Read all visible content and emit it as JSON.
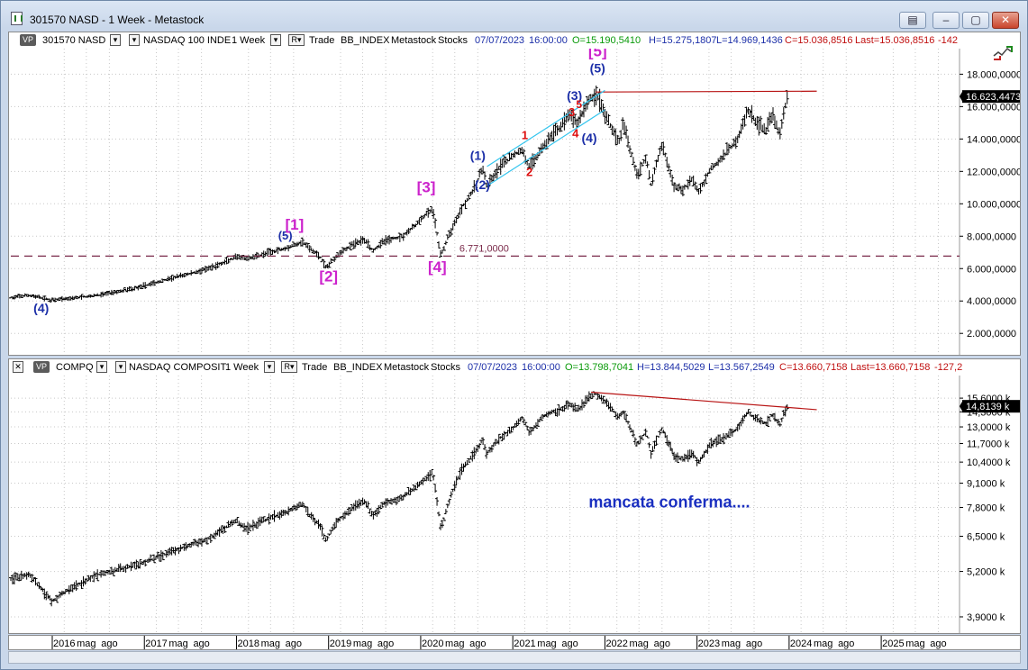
{
  "window": {
    "title": "301570 NASD - 1 Week - Metastock",
    "buttons": [
      "▤",
      "–",
      "▢",
      "✕"
    ]
  },
  "colors": {
    "purple": "#cc22cc",
    "navy": "#1c2fa8",
    "red": "#dd1010",
    "channel": "#33c5ee",
    "trend": "#b81414",
    "dashed": "#7a2a4a"
  },
  "top_header": {
    "vp": "VP",
    "symbol": "301570 NASD",
    "name": "NASDAQ 100 INDE",
    "period": "1 Week",
    "rline": "R",
    "trade": "Trade",
    "source": "BB_INDEX",
    "vendor": "Metastock",
    "type": "Stocks",
    "date": "07/07/2023",
    "time": "16:00:00",
    "open": "O=15.190,5410",
    "high": "H=15.275,1807",
    "low": "L=14.969,1436",
    "close": "C=15.036,8516",
    "last": "Last=15.036,8516",
    "change": "-142"
  },
  "bottom_header": {
    "vp": "VP",
    "symbol": "COMPQ",
    "name": "NASDAQ COMPOSIT",
    "period": "1 Week",
    "rline": "R",
    "trade": "Trade",
    "source": "BB_INDEX",
    "vendor": "Metastock",
    "type": "Stocks",
    "date": "07/07/2023",
    "time": "16:00:00",
    "open": "O=13.798,7041",
    "high": "H=13.844,5029",
    "low": "L=13.567,2549",
    "close": "C=13.660,7158",
    "last": "Last=13.660,7158",
    "change": "-127,2"
  },
  "chart_data": [
    {
      "type": "bar",
      "series_label": "301570 NASD",
      "x_range": [
        2015.55,
        2025.85
      ],
      "ylim": [
        900,
        19300
      ],
      "y_ticks": [
        {
          "value": 2000,
          "label": "2.000,0000"
        },
        {
          "value": 4000,
          "label": "4.000,0000"
        },
        {
          "value": 6000,
          "label": "6.000,0000"
        },
        {
          "value": 8000,
          "label": "8.000,0000"
        },
        {
          "value": 10000,
          "label": "10.000,0000"
        },
        {
          "value": 12000,
          "label": "12.000,0000"
        },
        {
          "value": 14000,
          "label": "14.000,0000"
        },
        {
          "value": 16000,
          "label": "16.000,0000"
        },
        {
          "value": 18000,
          "label": "18.000,0000"
        }
      ],
      "last_value": 16623.4473,
      "last_label": "16.623,4473",
      "price_path": [
        [
          2015.55,
          4200
        ],
        [
          2015.75,
          4350
        ],
        [
          2016.0,
          4050
        ],
        [
          2016.15,
          4150
        ],
        [
          2016.5,
          4350
        ],
        [
          2016.9,
          4800
        ],
        [
          2017.3,
          5400
        ],
        [
          2017.7,
          6000
        ],
        [
          2018.0,
          6700
        ],
        [
          2018.1,
          6600
        ],
        [
          2018.3,
          6900
        ],
        [
          2018.55,
          7300
        ],
        [
          2018.72,
          7650
        ],
        [
          2018.8,
          7200
        ],
        [
          2018.9,
          6800
        ],
        [
          2018.97,
          6050
        ],
        [
          2019.1,
          6900
        ],
        [
          2019.3,
          7600
        ],
        [
          2019.4,
          7800
        ],
        [
          2019.48,
          7100
        ],
        [
          2019.6,
          7700
        ],
        [
          2019.8,
          8000
        ],
        [
          2019.95,
          8700
        ],
        [
          2020.05,
          9300
        ],
        [
          2020.13,
          9650
        ],
        [
          2020.22,
          6771
        ],
        [
          2020.3,
          8000
        ],
        [
          2020.45,
          9800
        ],
        [
          2020.6,
          11100
        ],
        [
          2020.67,
          12300
        ],
        [
          2020.72,
          11000
        ],
        [
          2020.85,
          12200
        ],
        [
          2021.0,
          13000
        ],
        [
          2021.1,
          13300
        ],
        [
          2021.18,
          12300
        ],
        [
          2021.35,
          13700
        ],
        [
          2021.5,
          14700
        ],
        [
          2021.62,
          15500
        ],
        [
          2021.7,
          15000
        ],
        [
          2021.82,
          16400
        ],
        [
          2021.92,
          16750
        ],
        [
          2022.0,
          15500
        ],
        [
          2022.15,
          13800
        ],
        [
          2022.2,
          14900
        ],
        [
          2022.35,
          11800
        ],
        [
          2022.45,
          12900
        ],
        [
          2022.5,
          11200
        ],
        [
          2022.62,
          13700
        ],
        [
          2022.75,
          11100
        ],
        [
          2022.85,
          10900
        ],
        [
          2022.95,
          11500
        ],
        [
          2023.02,
          10700
        ],
        [
          2023.15,
          12200
        ],
        [
          2023.3,
          13000
        ],
        [
          2023.45,
          14100
        ],
        [
          2023.55,
          15800
        ],
        [
          2023.62,
          15200
        ],
        [
          2023.75,
          14500
        ],
        [
          2023.82,
          15600
        ],
        [
          2023.9,
          14200
        ],
        [
          2023.95,
          15900
        ],
        [
          2023.99,
          16650
        ]
      ],
      "dashed_level": 6771,
      "dashed_label": "6.771,0000",
      "resistance_line": {
        "from": [
          2021.9,
          16900
        ],
        "to": [
          2024.3,
          16950
        ]
      },
      "channel": {
        "lower": {
          "from": [
            2020.72,
            11100
          ],
          "to": [
            2022.0,
            15800
          ]
        },
        "upper": {
          "from": [
            2020.72,
            12300
          ],
          "to": [
            2022.0,
            17000
          ]
        }
      },
      "annotations": [
        {
          "text": "(4)",
          "x": 2015.88,
          "y": 3300,
          "color": "navy",
          "size": 14
        },
        {
          "text": "(5)",
          "x": 2018.53,
          "y": 7800,
          "color": "navy",
          "size": 13
        },
        {
          "text": "[1]",
          "x": 2018.63,
          "y": 8400,
          "color": "purple",
          "size": 17
        },
        {
          "text": "[2]",
          "x": 2019.0,
          "y": 5200,
          "color": "purple",
          "size": 17
        },
        {
          "text": "[3]",
          "x": 2020.06,
          "y": 10700,
          "color": "purple",
          "size": 17
        },
        {
          "text": "[4]",
          "x": 2020.18,
          "y": 5800,
          "color": "purple",
          "size": 17
        },
        {
          "text": "(1)",
          "x": 2020.62,
          "y": 12700,
          "color": "navy",
          "size": 14
        },
        {
          "text": "(2)",
          "x": 2020.67,
          "y": 10900,
          "color": "navy",
          "size": 14
        },
        {
          "text": "1",
          "x": 2021.13,
          "y": 14000,
          "color": "red",
          "size": 13
        },
        {
          "text": "2",
          "x": 2021.18,
          "y": 11700,
          "color": "red",
          "size": 13
        },
        {
          "text": "(3)",
          "x": 2021.67,
          "y": 16400,
          "color": "navy",
          "size": 14
        },
        {
          "text": "3",
          "x": 2021.64,
          "y": 15400,
          "color": "red",
          "size": 13
        },
        {
          "text": "5",
          "x": 2021.72,
          "y": 15900,
          "color": "red",
          "size": 12
        },
        {
          "text": "4",
          "x": 2021.68,
          "y": 14100,
          "color": "red",
          "size": 13
        },
        {
          "text": "(4)",
          "x": 2021.83,
          "y": 13800,
          "color": "navy",
          "size": 14
        },
        {
          "text": "(5)",
          "x": 2021.92,
          "y": 18100,
          "color": "navy",
          "size": 14
        },
        {
          "text": "[5]",
          "x": 2021.92,
          "y": 19100,
          "color": "purple",
          "size": 17
        }
      ]
    },
    {
      "type": "bar",
      "series_label": "COMPQ",
      "x_range": [
        2015.55,
        2025.85
      ],
      "y_ticks": [
        {
          "value": 3900,
          "label": "3,9000 k"
        },
        {
          "value": 5200,
          "label": "5,2000 k"
        },
        {
          "value": 6500,
          "label": "6,5000 k"
        },
        {
          "value": 7800,
          "label": "7,8000 k"
        },
        {
          "value": 9100,
          "label": "9,1000 k"
        },
        {
          "value": 10400,
          "label": "10,4000 k"
        },
        {
          "value": 11700,
          "label": "11,7000 k"
        },
        {
          "value": 13000,
          "label": "13,0000 k"
        },
        {
          "value": 14300,
          "label": "14,3000 k"
        },
        {
          "value": 15600,
          "label": "15,6000 k"
        }
      ],
      "last_value": 14813.9,
      "last_label": "14,8139 k",
      "price_path": [
        [
          2015.55,
          4950
        ],
        [
          2015.75,
          5100
        ],
        [
          2015.85,
          4750
        ],
        [
          2016.0,
          4300
        ],
        [
          2016.15,
          4600
        ],
        [
          2016.5,
          5100
        ],
        [
          2016.9,
          5400
        ],
        [
          2017.3,
          5900
        ],
        [
          2017.7,
          6400
        ],
        [
          2018.0,
          7200
        ],
        [
          2018.1,
          6800
        ],
        [
          2018.3,
          7200
        ],
        [
          2018.55,
          7600
        ],
        [
          2018.72,
          8000
        ],
        [
          2018.8,
          7400
        ],
        [
          2018.9,
          7000
        ],
        [
          2018.97,
          6300
        ],
        [
          2019.1,
          7200
        ],
        [
          2019.3,
          7900
        ],
        [
          2019.4,
          8100
        ],
        [
          2019.48,
          7400
        ],
        [
          2019.6,
          8000
        ],
        [
          2019.8,
          8300
        ],
        [
          2019.95,
          8900
        ],
        [
          2020.05,
          9300
        ],
        [
          2020.13,
          9700
        ],
        [
          2020.22,
          6700
        ],
        [
          2020.3,
          8000
        ],
        [
          2020.45,
          10000
        ],
        [
          2020.6,
          11100
        ],
        [
          2020.67,
          12000
        ],
        [
          2020.72,
          11000
        ],
        [
          2020.85,
          12000
        ],
        [
          2021.0,
          12900
        ],
        [
          2021.1,
          13800
        ],
        [
          2021.18,
          12600
        ],
        [
          2021.35,
          14000
        ],
        [
          2021.5,
          14500
        ],
        [
          2021.62,
          15000
        ],
        [
          2021.7,
          14400
        ],
        [
          2021.82,
          15600
        ],
        [
          2021.9,
          16100
        ],
        [
          2022.0,
          15300
        ],
        [
          2022.15,
          13800
        ],
        [
          2022.2,
          14300
        ],
        [
          2022.35,
          11600
        ],
        [
          2022.45,
          12600
        ],
        [
          2022.5,
          11000
        ],
        [
          2022.62,
          12900
        ],
        [
          2022.75,
          10800
        ],
        [
          2022.85,
          10600
        ],
        [
          2022.95,
          11000
        ],
        [
          2023.02,
          10400
        ],
        [
          2023.15,
          11700
        ],
        [
          2023.3,
          12200
        ],
        [
          2023.45,
          12900
        ],
        [
          2023.55,
          14300
        ],
        [
          2023.62,
          13800
        ],
        [
          2023.75,
          13300
        ],
        [
          2023.82,
          14100
        ],
        [
          2023.9,
          13100
        ],
        [
          2023.95,
          14300
        ],
        [
          2023.99,
          14800
        ]
      ],
      "trend_line": {
        "from": [
          2021.85,
          16200
        ],
        "to": [
          2024.3,
          14500
        ]
      },
      "annotation": "mancata conferma....",
      "annotation_at": [
        2022.7,
        7800
      ]
    }
  ],
  "date_axis": {
    "labels": [
      {
        "x": 2016.13,
        "text": "2016"
      },
      {
        "x": 2016.37,
        "text": "mag"
      },
      {
        "x": 2016.62,
        "text": "ago"
      },
      {
        "x": 2017.13,
        "text": "2017"
      },
      {
        "x": 2017.37,
        "text": "mag"
      },
      {
        "x": 2017.62,
        "text": "ago"
      },
      {
        "x": 2018.13,
        "text": "2018"
      },
      {
        "x": 2018.37,
        "text": "mag"
      },
      {
        "x": 2018.62,
        "text": "ago"
      },
      {
        "x": 2019.13,
        "text": "2019"
      },
      {
        "x": 2019.37,
        "text": "mag"
      },
      {
        "x": 2019.62,
        "text": "ago"
      },
      {
        "x": 2020.13,
        "text": "2020"
      },
      {
        "x": 2020.37,
        "text": "mag"
      },
      {
        "x": 2020.62,
        "text": "ago"
      },
      {
        "x": 2021.13,
        "text": "2021"
      },
      {
        "x": 2021.37,
        "text": "mag"
      },
      {
        "x": 2021.62,
        "text": "ago"
      },
      {
        "x": 2022.13,
        "text": "2022"
      },
      {
        "x": 2022.37,
        "text": "mag"
      },
      {
        "x": 2022.62,
        "text": "ago"
      },
      {
        "x": 2023.13,
        "text": "2023"
      },
      {
        "x": 2023.37,
        "text": "mag"
      },
      {
        "x": 2023.62,
        "text": "ago"
      },
      {
        "x": 2024.13,
        "text": "2024"
      },
      {
        "x": 2024.37,
        "text": "mag"
      },
      {
        "x": 2024.62,
        "text": "ago"
      },
      {
        "x": 2025.13,
        "text": "2025"
      },
      {
        "x": 2025.37,
        "text": "mag"
      },
      {
        "x": 2025.62,
        "text": "ago"
      }
    ]
  }
}
